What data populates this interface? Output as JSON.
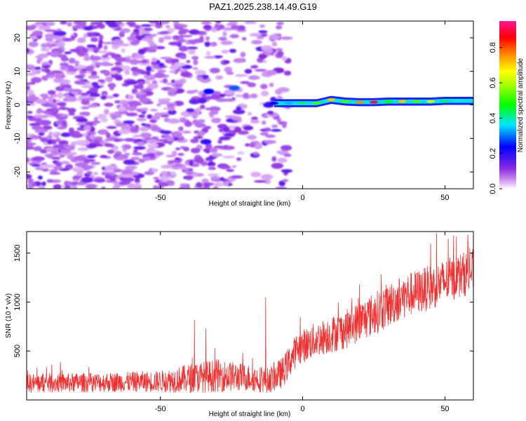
{
  "title": "PAZ1.2025.238.14.49.G19",
  "chart_data": [
    {
      "type": "heatmap",
      "xlabel": "Height of straight line (km)",
      "ylabel": "Frequency (Hz)",
      "xlim": [
        -97,
        60
      ],
      "ylim": [
        -25,
        25
      ],
      "xticks": [
        -50,
        0,
        50
      ],
      "yticks": [
        -20,
        -10,
        0,
        10,
        20
      ],
      "colorbar": {
        "label": "Normalized spectral amplitude",
        "range": [
          0,
          0.95
        ],
        "ticks": [
          0.0,
          0.2,
          0.4,
          0.6,
          0.8
        ]
      },
      "ridge": {
        "description": "main line near 0-1 Hz from about -10 km to 60 km",
        "points": [
          {
            "x": -10,
            "y": 0.5,
            "amp": 0.25
          },
          {
            "x": -5,
            "y": 0.5,
            "amp": 0.35
          },
          {
            "x": 0,
            "y": 0.5,
            "amp": 0.45
          },
          {
            "x": 5,
            "y": 0.5,
            "amp": 0.55
          },
          {
            "x": 10,
            "y": 1.5,
            "amp": 0.75
          },
          {
            "x": 15,
            "y": 1.0,
            "amp": 0.55
          },
          {
            "x": 20,
            "y": 0.8,
            "amp": 0.8
          },
          {
            "x": 25,
            "y": 0.8,
            "amp": 0.95
          },
          {
            "x": 30,
            "y": 1.0,
            "amp": 0.5
          },
          {
            "x": 35,
            "y": 1.0,
            "amp": 0.75
          },
          {
            "x": 40,
            "y": 1.0,
            "amp": 0.55
          },
          {
            "x": 45,
            "y": 1.0,
            "amp": 0.65
          },
          {
            "x": 50,
            "y": 1.2,
            "amp": 0.45
          },
          {
            "x": 55,
            "y": 1.2,
            "amp": 0.4
          },
          {
            "x": 60,
            "y": 1.2,
            "amp": 0.4
          }
        ]
      },
      "blobs": [
        {
          "x": -38,
          "y": 1,
          "amp": 0.15
        },
        {
          "x": -33,
          "y": 4,
          "amp": 0.25
        },
        {
          "x": -24,
          "y": 5,
          "amp": 0.3
        },
        {
          "x": -34,
          "y": -11,
          "amp": 0.2
        },
        {
          "x": -12,
          "y": 0,
          "amp": 0.2
        }
      ]
    },
    {
      "type": "line",
      "xlabel": "Height of straight line (km)",
      "ylabel": "SNR (10 * v/v)",
      "xlim": [
        -97,
        60
      ],
      "ylim": [
        0,
        1720
      ],
      "xticks": [
        -50,
        0,
        50
      ],
      "yticks": [
        500,
        1000,
        1500
      ],
      "color": "#f03030",
      "trend": [
        {
          "x": -97,
          "mean": 170,
          "noise": 100
        },
        {
          "x": -70,
          "mean": 180,
          "noise": 100
        },
        {
          "x": -50,
          "mean": 190,
          "noise": 110
        },
        {
          "x": -40,
          "mean": 220,
          "noise": 150
        },
        {
          "x": -30,
          "mean": 250,
          "noise": 170
        },
        {
          "x": -20,
          "mean": 230,
          "noise": 140
        },
        {
          "x": -12,
          "mean": 200,
          "noise": 130
        },
        {
          "x": -7,
          "mean": 280,
          "noise": 160
        },
        {
          "x": -2,
          "mean": 520,
          "noise": 170
        },
        {
          "x": 5,
          "mean": 620,
          "noise": 180
        },
        {
          "x": 15,
          "mean": 720,
          "noise": 200
        },
        {
          "x": 25,
          "mean": 880,
          "noise": 220
        },
        {
          "x": 35,
          "mean": 1050,
          "noise": 230
        },
        {
          "x": 45,
          "mean": 1150,
          "noise": 230
        },
        {
          "x": 55,
          "mean": 1270,
          "noise": 230
        },
        {
          "x": 60,
          "mean": 1320,
          "noise": 230
        }
      ],
      "spikes": [
        {
          "x": -38,
          "y": 820
        },
        {
          "x": -34,
          "y": 730
        },
        {
          "x": -13,
          "y": 1050
        },
        {
          "x": 20,
          "y": 1180
        },
        {
          "x": 45,
          "y": 1600
        },
        {
          "x": 53,
          "y": 1680
        },
        {
          "x": 58,
          "y": 1690
        }
      ]
    }
  ]
}
